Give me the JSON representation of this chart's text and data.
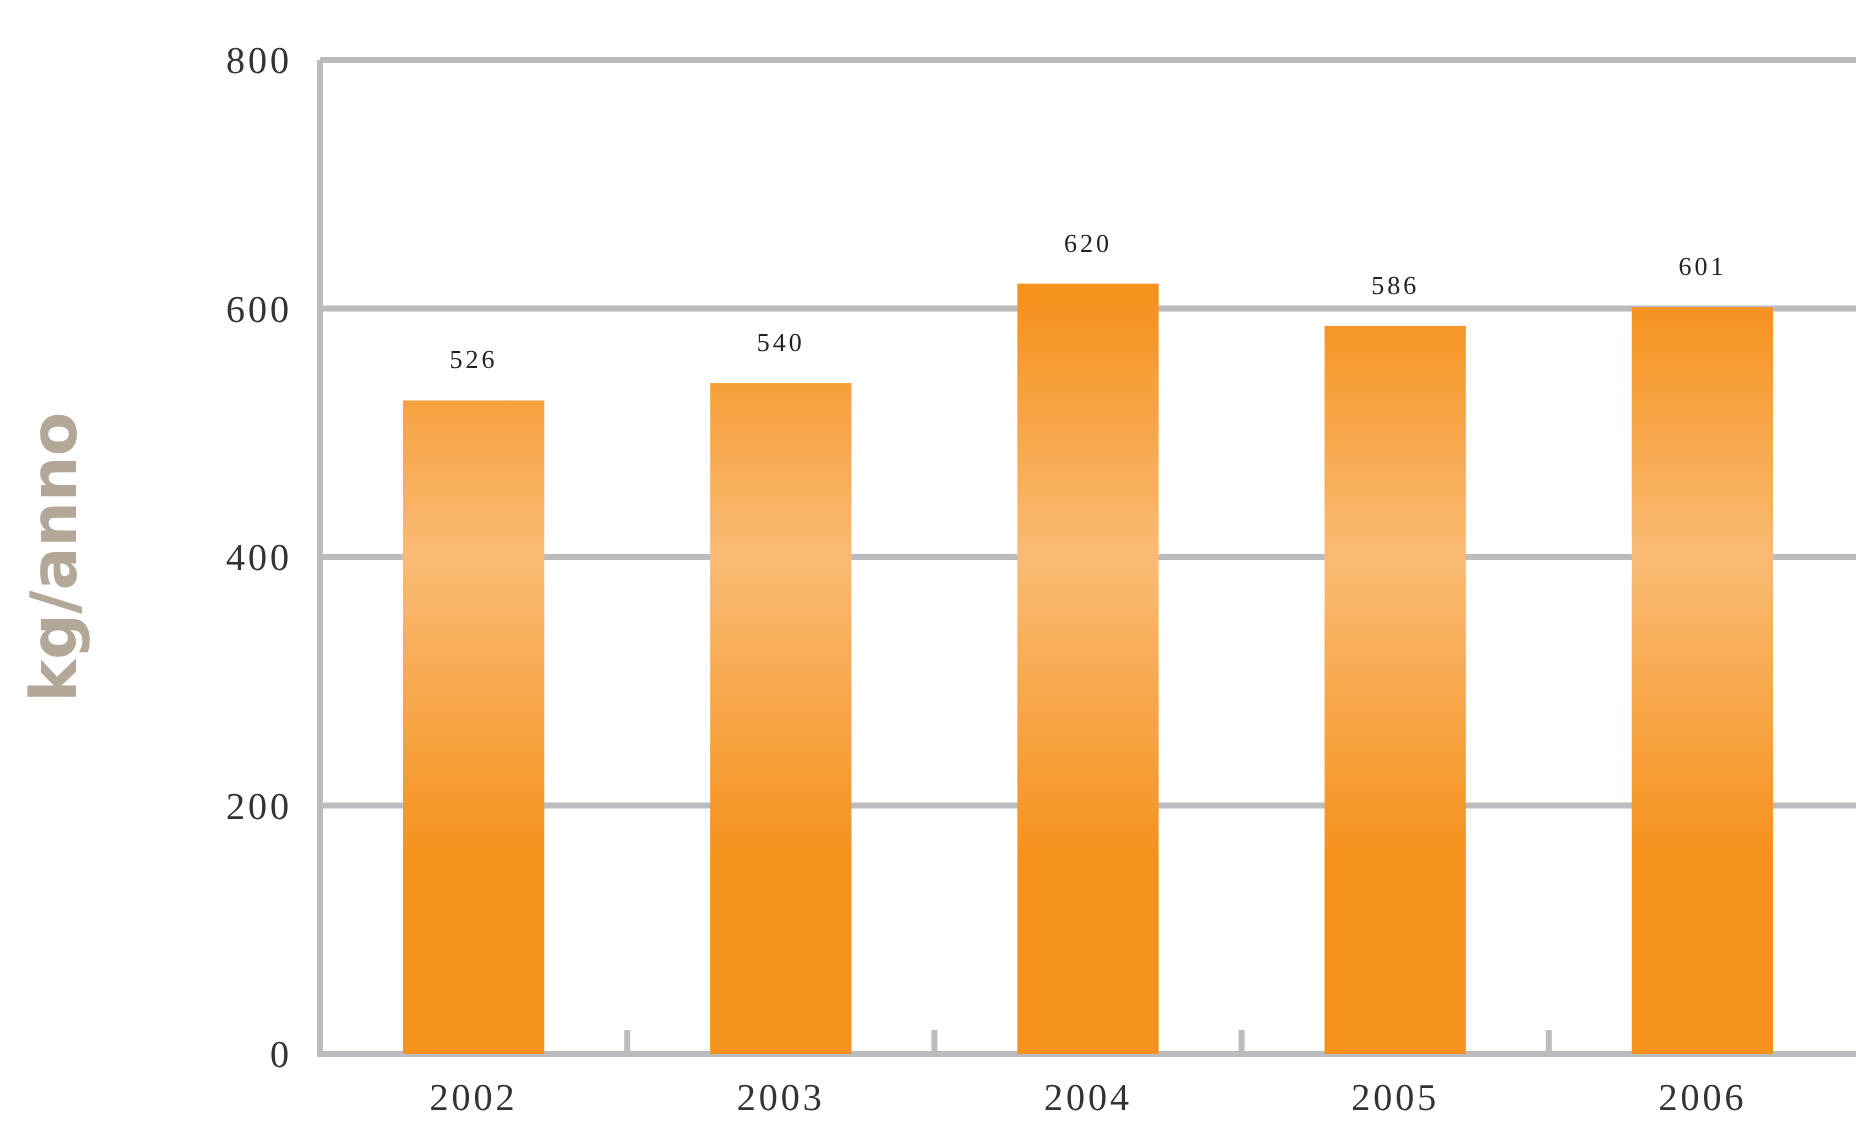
{
  "chart_data": {
    "type": "bar",
    "ylabel": "kg/anno",
    "categories": [
      "2002",
      "2003",
      "2004",
      "2005",
      "2006"
    ],
    "values": [
      526,
      540,
      620,
      586,
      601
    ],
    "color": "#f6921e",
    "ylim": [
      0,
      800
    ],
    "yticks": [
      0,
      200,
      400,
      600,
      800
    ],
    "grid": "y",
    "data_labels": true
  }
}
